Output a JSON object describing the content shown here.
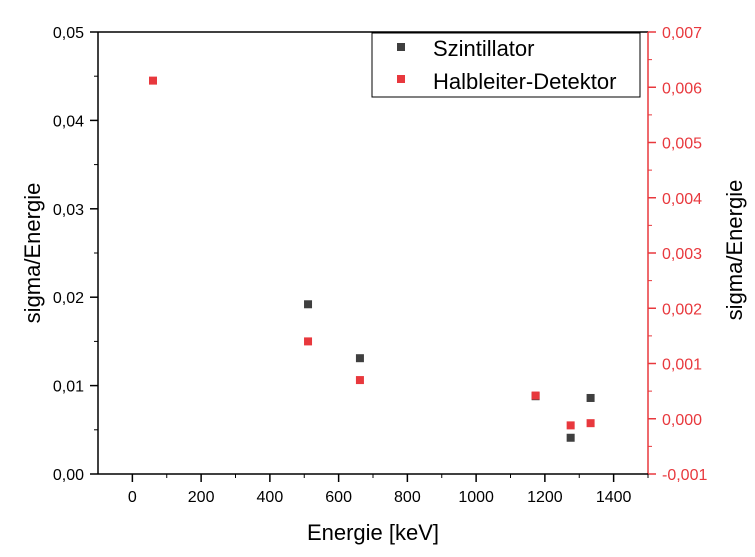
{
  "chart_data": {
    "type": "scatter",
    "title": "",
    "xlabel": "Energie [keV]",
    "ylabel": "sigma/Energie",
    "y2label": "sigma/Energie",
    "xlim": [
      -100,
      1500
    ],
    "ylim": [
      0,
      0.05
    ],
    "y2lim": [
      -0.001,
      0.007
    ],
    "x_ticks": [
      "0",
      "200",
      "400",
      "600",
      "800",
      "1000",
      "1200",
      "1400"
    ],
    "y_ticks": [
      "0,00",
      "0,01",
      "0,02",
      "0,03",
      "0,04",
      "0,05"
    ],
    "y2_ticks": [
      "-0,001",
      "0,000",
      "0,001",
      "0,002",
      "0,003",
      "0,004",
      "0,005",
      "0,006",
      "0,007"
    ],
    "grid": false,
    "legend_position": "top-right",
    "series": [
      {
        "name": "Szintillator",
        "axis": "left",
        "color": "#3f3f3f",
        "marker": "square",
        "x": [
          511,
          662,
          1173,
          1275,
          1333
        ],
        "y": [
          0.0192,
          0.0131,
          0.0088,
          0.0041,
          0.0086
        ]
      },
      {
        "name": "Halbleiter-Detektor",
        "axis": "right",
        "color": "#e8383d",
        "marker": "square",
        "x": [
          60,
          511,
          662,
          1173,
          1275,
          1333
        ],
        "y": [
          0.00612,
          0.0014,
          0.0007,
          0.00042,
          -0.00012,
          -8e-05
        ]
      }
    ],
    "colors": {
      "left_axis": "#000000",
      "right_axis": "#e8383d"
    }
  }
}
